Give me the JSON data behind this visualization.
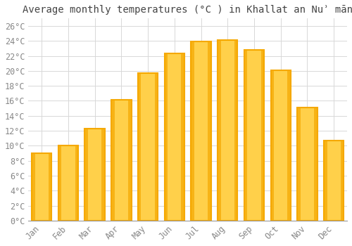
{
  "title": "Average monthly temperatures (°C ) in Khallat an Nuʾ mān",
  "months": [
    "Jan",
    "Feb",
    "Mar",
    "Apr",
    "May",
    "Jun",
    "Jul",
    "Aug",
    "Sep",
    "Oct",
    "Nov",
    "Dec"
  ],
  "values": [
    9,
    10,
    12.3,
    16.1,
    19.7,
    22.3,
    23.9,
    24.1,
    22.8,
    20.1,
    15.1,
    10.7
  ],
  "bar_color_center": "#FFD04A",
  "bar_color_edge": "#F5A800",
  "background_color": "#FFFFFF",
  "grid_color": "#D8D8D8",
  "text_color": "#888888",
  "ylim": [
    0,
    27
  ],
  "yticks": [
    0,
    2,
    4,
    6,
    8,
    10,
    12,
    14,
    16,
    18,
    20,
    22,
    24,
    26
  ],
  "title_fontsize": 10,
  "tick_fontsize": 8.5
}
